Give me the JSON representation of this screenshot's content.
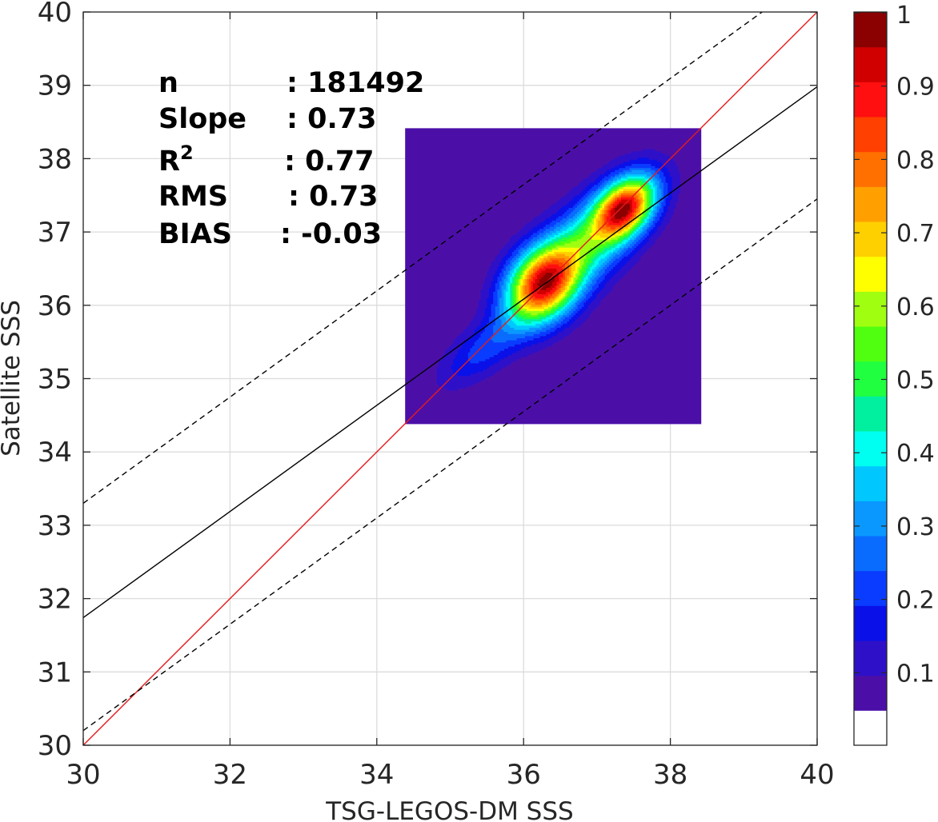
{
  "chart_data": {
    "type": "heatmap",
    "subtype": "density contour scatter",
    "xlabel": "TSG-LEGOS-DM SSS",
    "ylabel": "Satellite SSS",
    "xlim": [
      30,
      40
    ],
    "ylim": [
      30,
      40
    ],
    "x_ticks": [
      "30",
      "32",
      "34",
      "36",
      "38",
      "40"
    ],
    "y_ticks": [
      "30",
      "31",
      "32",
      "33",
      "34",
      "35",
      "36",
      "37",
      "38",
      "39",
      "40"
    ],
    "grid": true,
    "stats": [
      {
        "label": "n",
        "sup": "",
        "value": ": 181492"
      },
      {
        "label": "Slope",
        "sup": "",
        "value": ": 0.73"
      },
      {
        "label": "R",
        "sup": "2",
        "value": ": 0.77"
      },
      {
        "label": "RMS",
        "sup": "",
        "value": ": 0.73"
      },
      {
        "label": "BIAS",
        "sup": "",
        "value": ": -0.03"
      }
    ],
    "lines": [
      {
        "name": "identity",
        "color": "#e41a1c",
        "style": "solid",
        "points": [
          [
            30,
            30
          ],
          [
            40,
            40
          ]
        ]
      },
      {
        "name": "regression",
        "color": "#000000",
        "style": "solid",
        "points": [
          [
            30,
            31.74
          ],
          [
            40,
            38.98
          ]
        ]
      },
      {
        "name": "upper-bound",
        "color": "#000000",
        "style": "dashed",
        "points": [
          [
            30,
            33.3
          ],
          [
            39.25,
            40
          ]
        ]
      },
      {
        "name": "lower-bound",
        "color": "#000000",
        "style": "dashed",
        "points": [
          [
            30,
            30.2
          ],
          [
            40,
            37.45
          ]
        ]
      }
    ],
    "density_peaks": [
      {
        "x": 36.25,
        "y": 36.28,
        "sx": 0.3,
        "sy": 0.4,
        "angle_deg": 53,
        "weight": 1.0
      },
      {
        "x": 37.38,
        "y": 37.33,
        "sx": 0.22,
        "sy": 0.34,
        "angle_deg": 48,
        "weight": 0.98
      },
      {
        "x": 36.85,
        "y": 36.85,
        "sx": 0.32,
        "sy": 0.72,
        "angle_deg": 45,
        "weight": 0.55
      },
      {
        "x": 35.45,
        "y": 35.4,
        "sx": 0.22,
        "sy": 0.5,
        "angle_deg": 38,
        "weight": 0.22
      }
    ],
    "colorbar": {
      "ticks": [
        "0.1",
        "0.2",
        "0.3",
        "0.4",
        "0.5",
        "0.6",
        "0.7",
        "0.8",
        "0.9",
        "1"
      ],
      "tick_values": [
        0.1,
        0.2,
        0.3,
        0.4,
        0.5,
        0.6,
        0.7,
        0.8,
        0.9,
        1.0
      ],
      "levels": [
        0,
        0.05,
        0.1,
        0.15,
        0.2,
        0.25,
        0.3,
        0.35,
        0.4,
        0.45,
        0.5,
        0.55,
        0.6,
        0.65,
        0.7,
        0.75,
        0.8,
        0.85,
        0.9,
        0.95,
        1.0
      ],
      "colors": [
        "#ffffff",
        "#4b0fa8",
        "#2e10c8",
        "#0a10e8",
        "#0a3cff",
        "#0a6cff",
        "#0a98ff",
        "#00c8ff",
        "#00fff0",
        "#00f0a0",
        "#20ff40",
        "#50ff10",
        "#a0ff10",
        "#ffff00",
        "#ffd000",
        "#ffa000",
        "#ff7000",
        "#ff4000",
        "#ff0f0f",
        "#d00000",
        "#8b0000"
      ]
    }
  }
}
